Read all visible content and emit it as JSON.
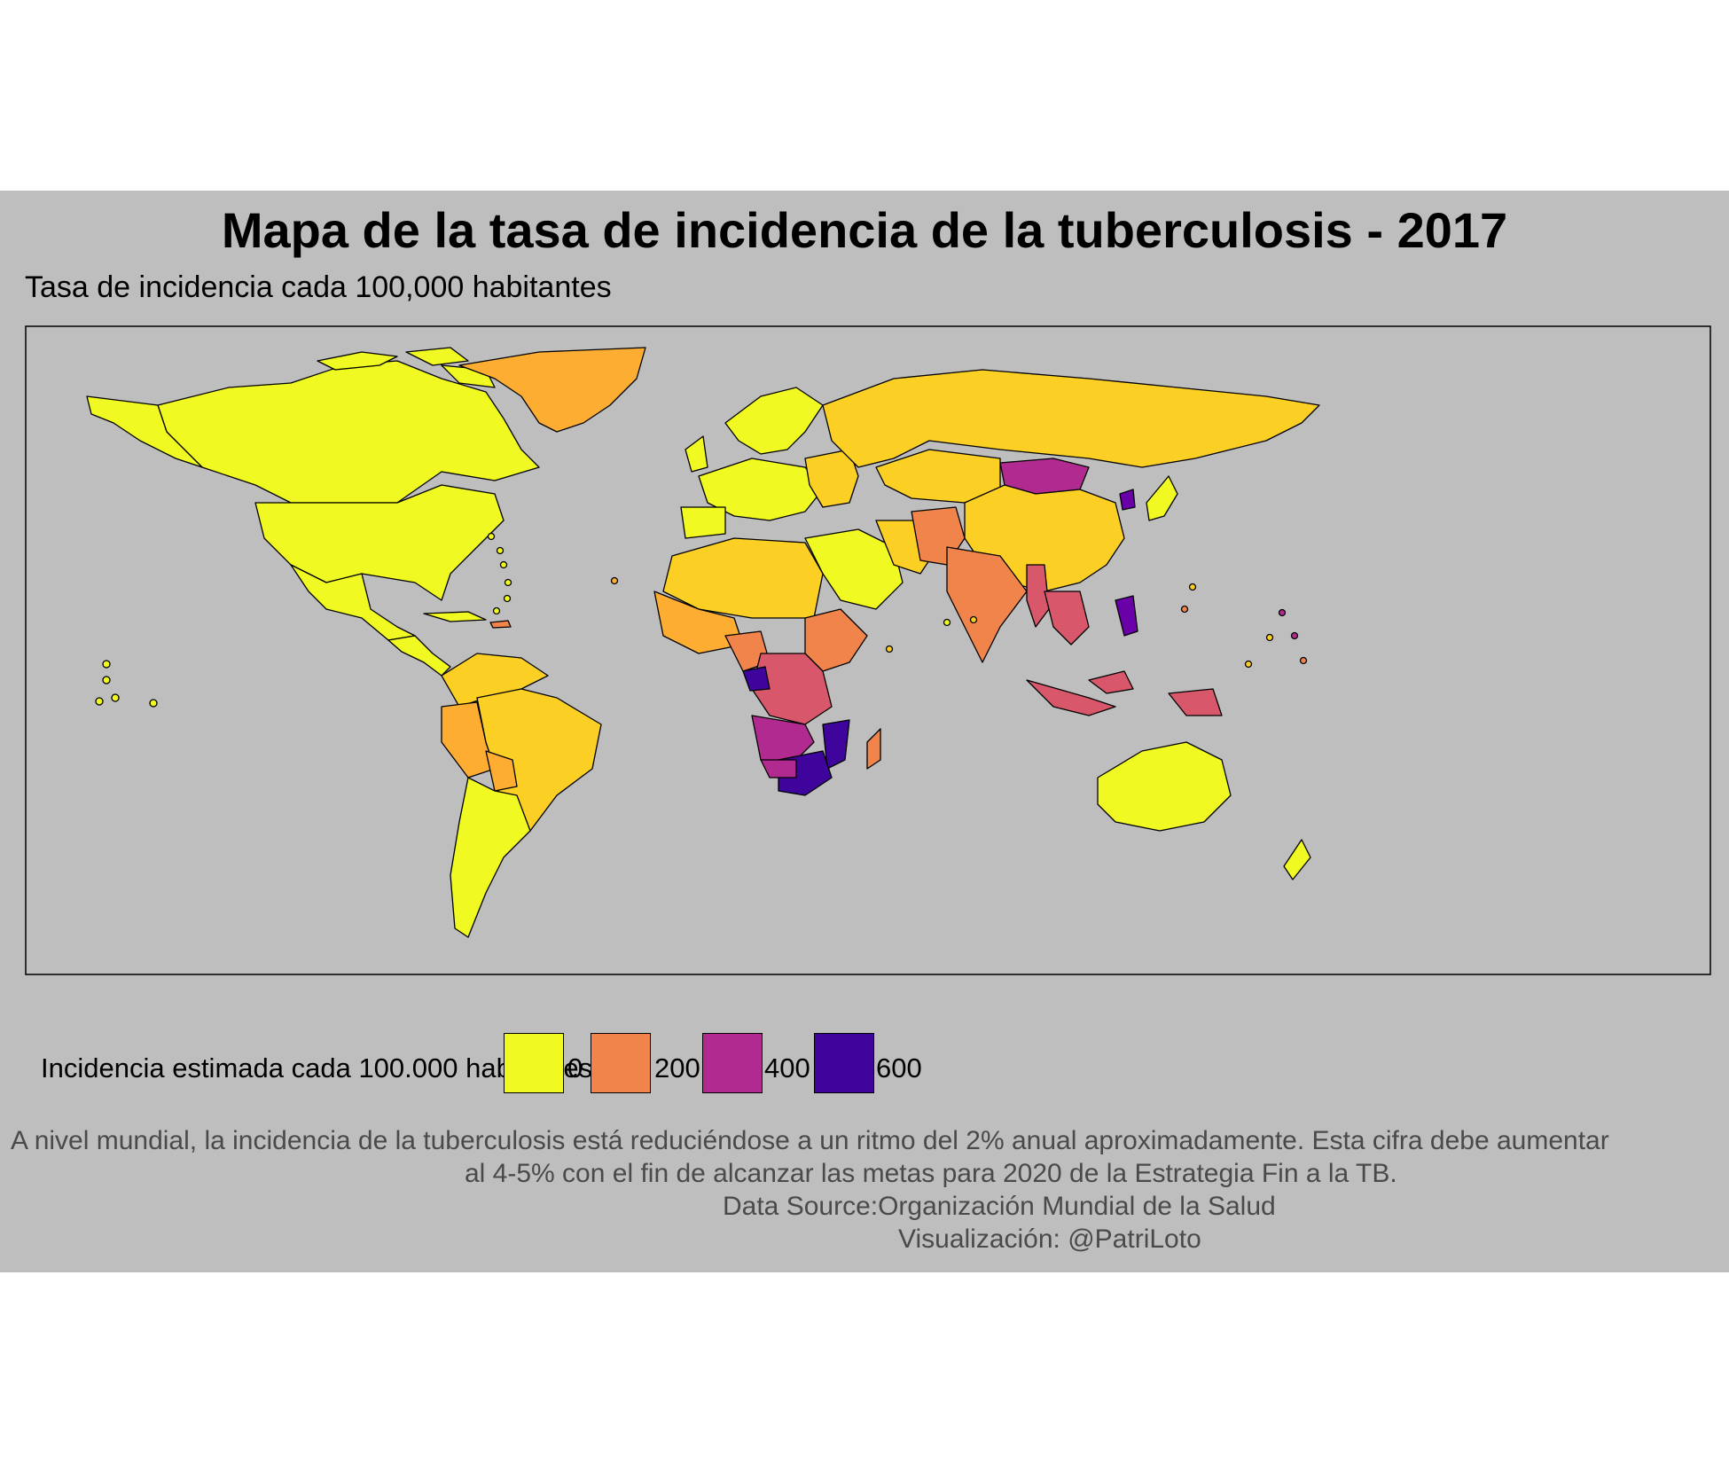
{
  "title": "Mapa de la tasa de incidencia de la tuberculosis - 2017",
  "subtitle": "Tasa de incidencia cada 100,000 habitantes",
  "legend": {
    "title": "Incidencia estimada cada 100.000 habitantes",
    "items": [
      {
        "label": "0",
        "color": "#f0f921"
      },
      {
        "label": "200",
        "color": "#f1844b"
      },
      {
        "label": "400",
        "color": "#b12a90"
      },
      {
        "label": "600",
        "color": "#3f049c"
      }
    ]
  },
  "caption": {
    "line1": "A nivel mundial, la incidencia de la tuberculosis está reduciéndose a un ritmo del 2% anual aproximadamente. Esta cifra debe aumentar",
    "line2": "al 4-5% con el fin de alcanzar las metas para 2020 de la Estrategia Fin a la TB.",
    "line3": "Data Source:Organización Mundial de la Salud",
    "line4": "Visualización: @PatriLoto"
  },
  "map": {
    "background": "#bebebe",
    "palette": {
      "low": "#f0f921",
      "low_mid": "#fccf25",
      "mid_low": "#fdad32",
      "mid": "#f1844b",
      "mid_high": "#d8576b",
      "high": "#b12a90",
      "very_high": "#6a00a8",
      "max": "#3f049c"
    }
  }
}
